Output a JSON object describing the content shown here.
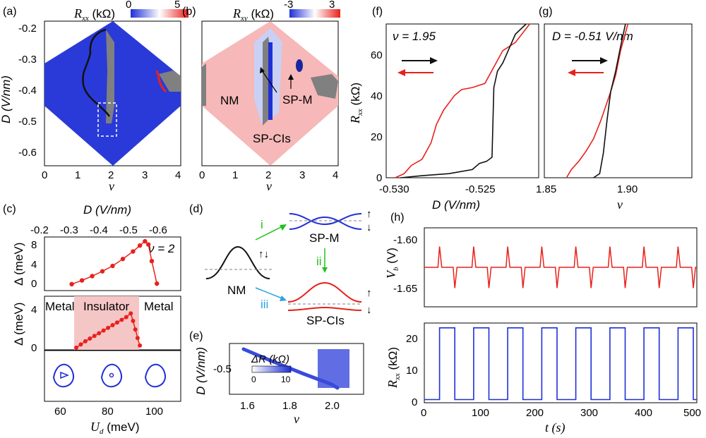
{
  "panels": {
    "a": {
      "label": "(a)",
      "cbar_min": "0",
      "cbar_max": "5",
      "cbar_title": "R",
      "cbar_sub": "xx",
      "cbar_unit": " (kΩ)",
      "ylabel": "D (V/nm)",
      "xlabel": "ν",
      "yticks": [
        "-0.2",
        "-0.3",
        "-0.4",
        "-0.5",
        "-0.6"
      ],
      "xticks": [
        "0",
        "1",
        "2",
        "3",
        "4"
      ]
    },
    "b": {
      "label": "(b)",
      "cbar_min": "-3",
      "cbar_max": "3",
      "cbar_title": "R",
      "cbar_sub": "xy",
      "cbar_unit": " (kΩ)",
      "xlabel": "ν",
      "xticks": [
        "0",
        "1",
        "2",
        "3",
        "4"
      ],
      "annotations": [
        "NM",
        "SP-M",
        "SP-CIs"
      ]
    },
    "c": {
      "label": "(c)",
      "top_xlabel": "D (V/nm)",
      "top_xticks": [
        "-0.2",
        "-0.3",
        "-0.4",
        "-0.5",
        "-0.6"
      ],
      "nu_label": "ν = 2",
      "ylabel1": "Δ (meV)",
      "yticks1": [
        "0",
        "4",
        "8"
      ],
      "ylabel2": "Δ (meV)",
      "yticks2": [
        "0",
        "4"
      ],
      "regions": [
        "Metal",
        "Insulator",
        "Metal"
      ],
      "xlabel": "U",
      "xlabel_sub": "d",
      "xlabel_unit": " (meV)",
      "xticks": [
        "60",
        "80",
        "100"
      ]
    },
    "d": {
      "label": "(d)",
      "nm": "NM",
      "spm": "SP-M",
      "spcis": "SP-CIs",
      "arrows": [
        "i",
        "ii",
        "iii"
      ]
    },
    "e": {
      "label": "(e)",
      "ylabel": "D (V/nm)",
      "ytick": "-0.5",
      "xlabel": "ν",
      "xticks": [
        "1.6",
        "1.8",
        "2.0"
      ],
      "cbar_title": "ΔR (kΩ)",
      "cbar_min": "0",
      "cbar_max": "10"
    },
    "f": {
      "label": "(f)",
      "annotation": "ν = 1.95",
      "ylabel": "R",
      "ylabel_sub": "xx",
      "ylabel_unit": " (kΩ)",
      "yticks": [
        "0",
        "20",
        "40",
        "60"
      ],
      "xlabel": "D (V/nm)",
      "xticks": [
        "-0.530",
        "-0.525"
      ]
    },
    "g": {
      "label": "(g)",
      "annotation": "D = -0.51 V/nm",
      "xlabel": "ν",
      "xticks": [
        "1.85",
        "1.90"
      ]
    },
    "h": {
      "label": "(h)",
      "ylabel_top": "V",
      "ylabel_top_sub": "b",
      "ylabel_top_unit": " (V)",
      "yticks_top": [
        "-1.60",
        "-1.65"
      ],
      "ylabel_bot": "R",
      "ylabel_bot_sub": "xx",
      "ylabel_bot_unit": " (kΩ)",
      "yticks_bot": [
        "0",
        "10",
        "20"
      ],
      "xlabel": "t (s)",
      "xticks": [
        "0",
        "100",
        "200",
        "300",
        "400",
        "500"
      ]
    }
  },
  "colors": {
    "red": "#e8211b",
    "black": "#111111",
    "blue": "#1f2fd6",
    "cyan": "#2aa3e0",
    "green": "#22c11e",
    "pink": "#f5c6c6",
    "gray": "#808080"
  },
  "chart_data": [
    {
      "type": "heatmap",
      "panel": "a",
      "title": "",
      "xlabel": "ν",
      "ylabel": "D (V/nm)",
      "xlim": [
        0,
        4
      ],
      "ylim": [
        -0.65,
        -0.2
      ],
      "colorbar": {
        "label": "Rxx (kΩ)",
        "range": [
          0,
          5
        ]
      }
    },
    {
      "type": "heatmap",
      "panel": "b",
      "title": "",
      "xlabel": "ν",
      "ylabel": "D (V/nm)",
      "xlim": [
        0,
        4
      ],
      "ylim": [
        -0.65,
        -0.2
      ],
      "colorbar": {
        "label": "Rxy (kΩ)",
        "range": [
          -3,
          3
        ]
      }
    },
    {
      "type": "scatter",
      "panel": "c-top",
      "xlabel": "D (V/nm)",
      "ylabel": "Δ (meV)",
      "xlim": [
        -0.2,
        -0.6
      ],
      "ylim": [
        0,
        10
      ],
      "x": [
        -0.28,
        -0.31,
        -0.34,
        -0.37,
        -0.4,
        -0.43,
        -0.46,
        -0.48,
        -0.495,
        -0.505,
        -0.515,
        -0.53
      ],
      "y": [
        1.2,
        1.9,
        2.7,
        3.6,
        4.6,
        5.9,
        7.3,
        8.4,
        9.2,
        8.6,
        5.5,
        1.3
      ]
    },
    {
      "type": "scatter",
      "panel": "c-bottom",
      "xlabel": "Ud (meV)",
      "ylabel": "Δ (meV)",
      "xlim": [
        50,
        110
      ],
      "ylim": [
        0,
        5
      ],
      "x": [
        64,
        66,
        68,
        70,
        72,
        74,
        76,
        78,
        80,
        82,
        84,
        86,
        88,
        89,
        90,
        91,
        92
      ],
      "y": [
        0.2,
        0.5,
        0.8,
        1.05,
        1.3,
        1.55,
        1.8,
        2.05,
        2.3,
        2.55,
        2.8,
        3.05,
        3.4,
        2.7,
        1.9,
        1.1,
        0.4
      ]
    },
    {
      "type": "line",
      "panel": "f",
      "xlabel": "D (V/nm)",
      "ylabel": "Rxx (kΩ)",
      "xlim": [
        -0.531,
        -0.5225
      ],
      "ylim": [
        0,
        75
      ],
      "series": [
        {
          "x": [
            -0.5305,
            -0.53,
            -0.5296,
            -0.529,
            -0.5285,
            -0.5282,
            -0.5278,
            -0.5272,
            -0.5268,
            -0.5262,
            -0.5255,
            -0.525,
            -0.5245,
            -0.5238,
            -0.523
          ],
          "values": [
            0,
            2,
            6,
            9,
            17,
            26,
            33,
            40,
            43,
            44,
            46,
            54,
            62,
            66,
            75
          ]
        },
        {
          "x": [
            -0.5302,
            -0.529,
            -0.5275,
            -0.5262,
            -0.5258,
            -0.5254,
            -0.5251,
            -0.525,
            -0.5248,
            -0.5245,
            -0.5242,
            -0.5238,
            -0.5232
          ],
          "values": [
            0,
            1,
            2,
            4,
            7,
            8,
            10,
            44,
            52,
            56,
            62,
            70,
            75
          ]
        }
      ]
    },
    {
      "type": "line",
      "panel": "g",
      "xlabel": "ν",
      "ylabel": "Rxx (kΩ)",
      "xlim": [
        1.85,
        1.97
      ],
      "ylim": [
        0,
        75
      ],
      "series": [
        {
          "x": [
            1.868,
            1.872,
            1.878,
            1.884,
            1.89,
            1.896,
            1.9,
            1.904,
            1.908,
            1.912,
            1.918
          ],
          "values": [
            0,
            4,
            8,
            13,
            19,
            28,
            35,
            42,
            50,
            62,
            75
          ]
        },
        {
          "x": [
            1.89,
            1.895,
            1.898,
            1.901,
            1.904,
            1.908,
            1.912,
            1.916
          ],
          "values": [
            0,
            2,
            12,
            28,
            42,
            52,
            64,
            75
          ]
        }
      ]
    },
    {
      "type": "line",
      "panel": "h-top",
      "xlabel": "t (s)",
      "ylabel": "Vb (V)",
      "xlim": [
        0,
        500
      ],
      "ylim": [
        -1.67,
        -1.59
      ],
      "series": [
        {
          "x": [
            0,
            25,
            28,
            32,
            53,
            56,
            60,
            500
          ],
          "values": [
            -1.63,
            -1.63,
            -1.609,
            -1.63,
            -1.63,
            -1.651,
            -1.63,
            -1.63
          ]
        }
      ]
    },
    {
      "type": "line",
      "panel": "h-bottom",
      "xlabel": "t (s)",
      "ylabel": "Rxx (kΩ)",
      "xlim": [
        0,
        500
      ],
      "ylim": [
        0,
        25
      ],
      "series": [
        {
          "x": [
            0,
            28,
            28,
            56,
            56,
            500
          ],
          "values": [
            1,
            1,
            23.5,
            23.5,
            1,
            1
          ]
        }
      ]
    }
  ]
}
